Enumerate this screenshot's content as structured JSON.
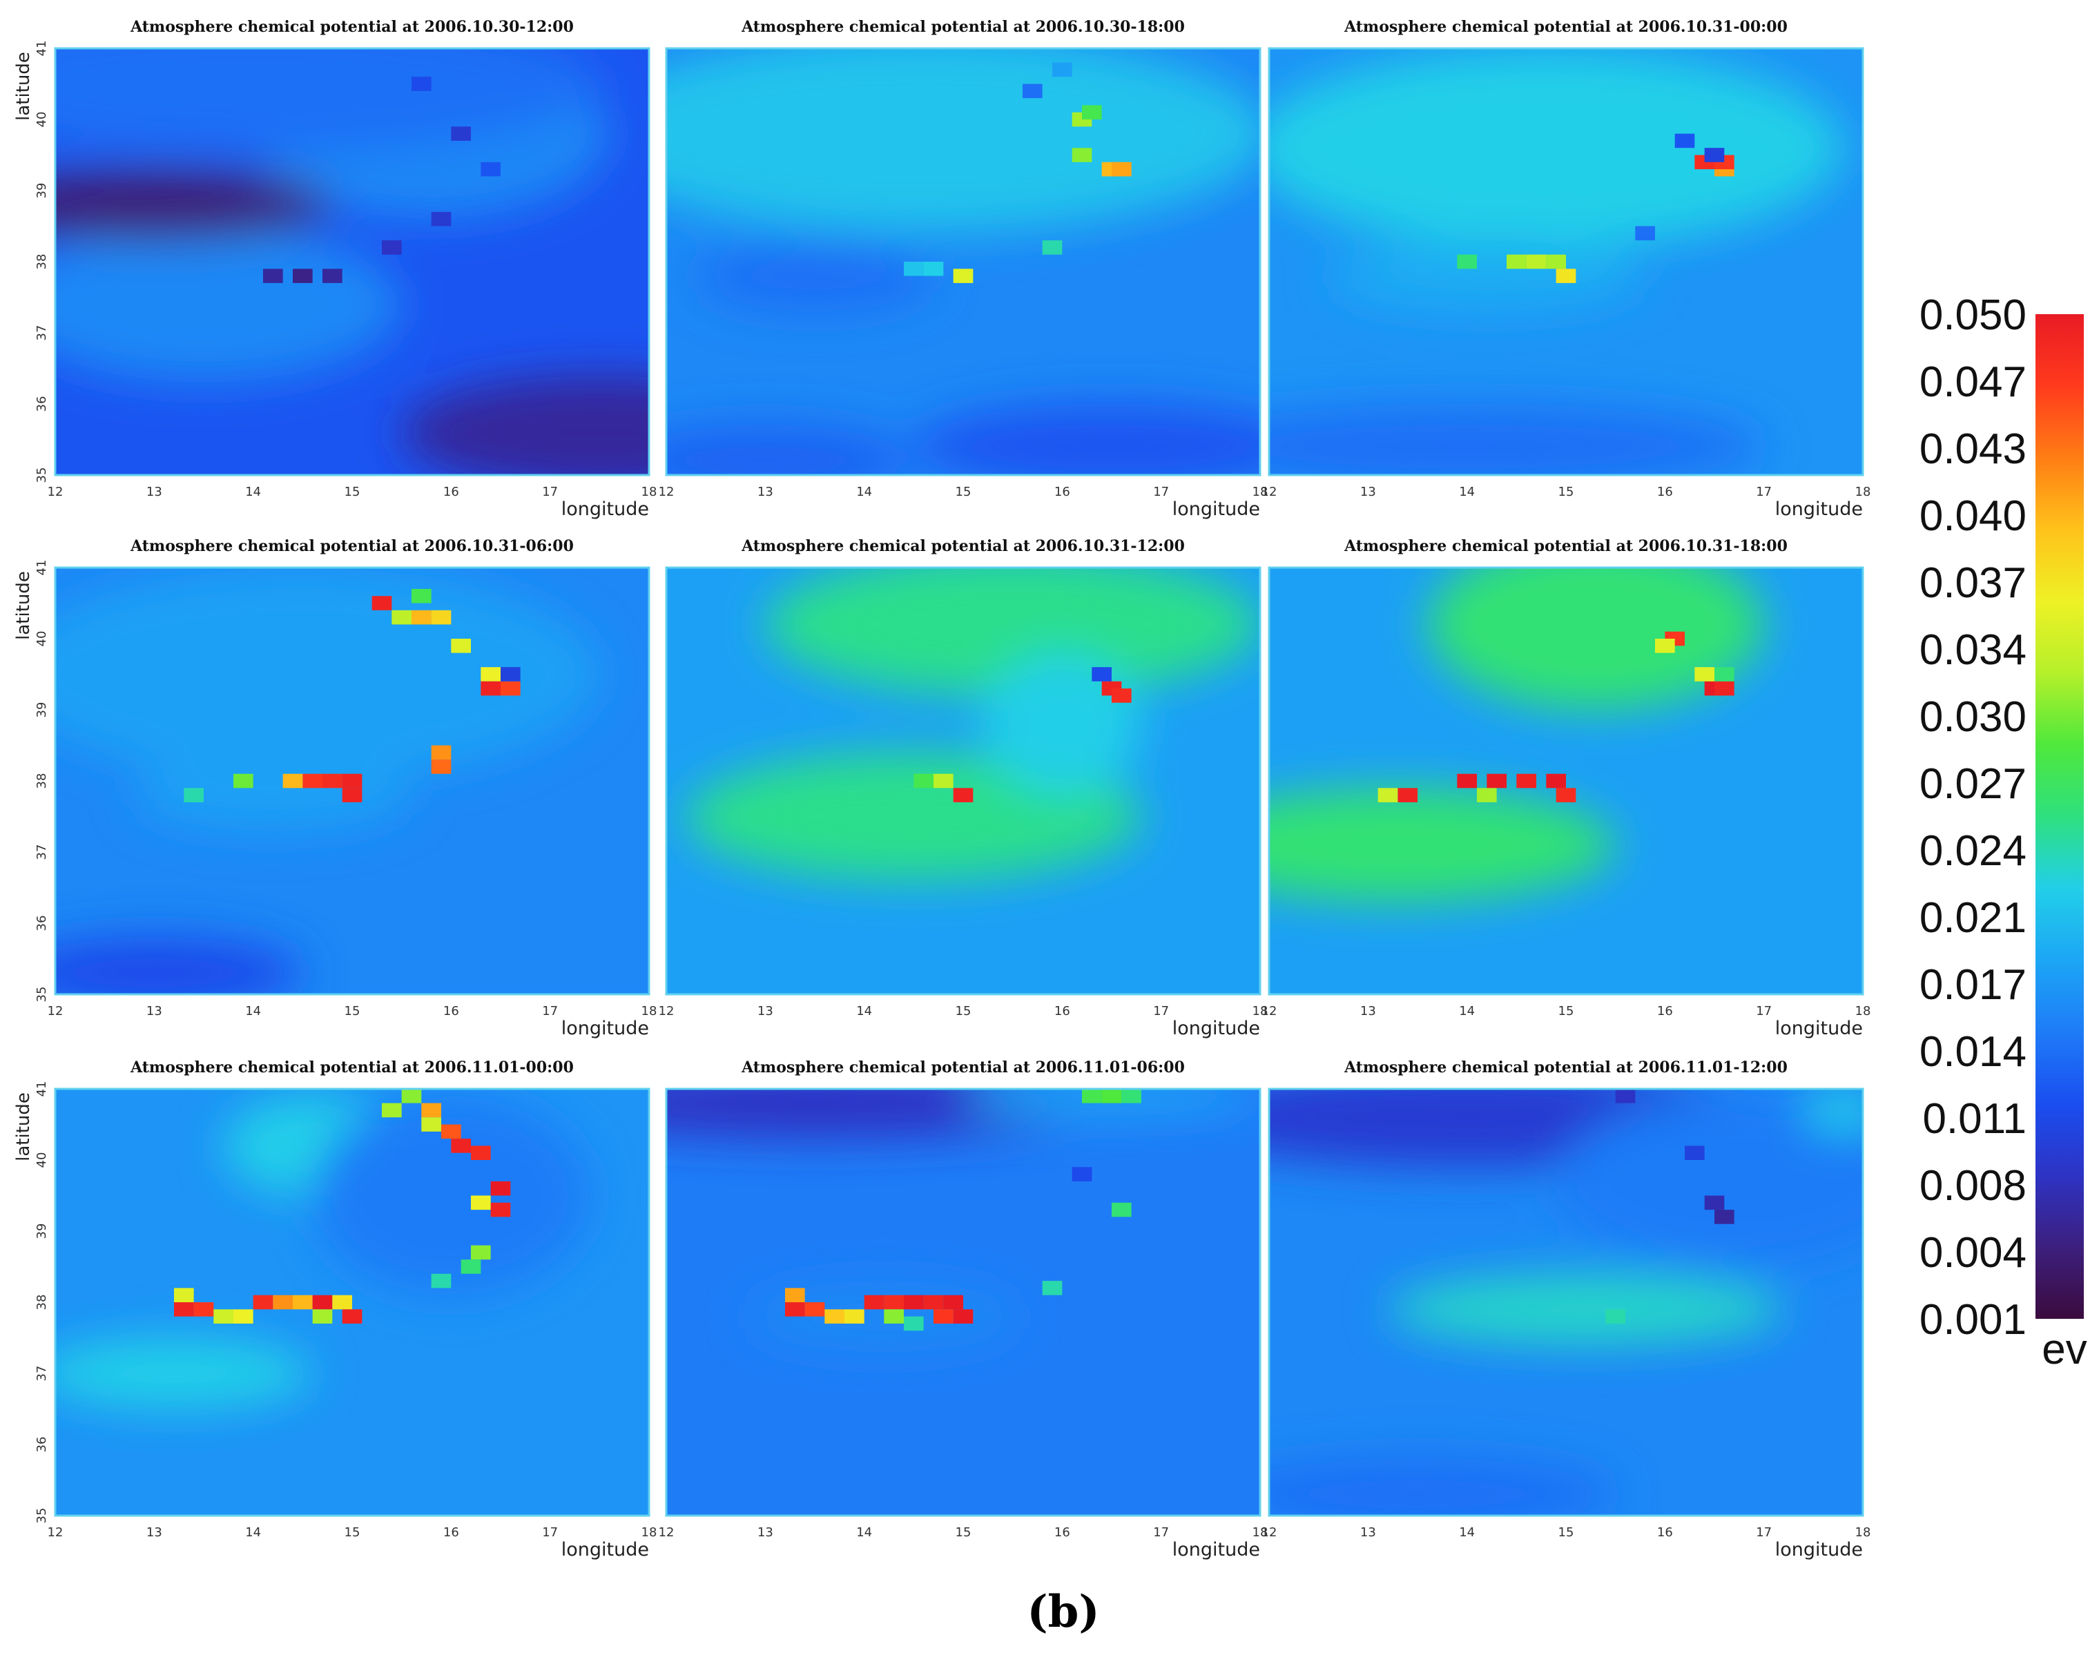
{
  "figure_label": "(b)",
  "chart_data": {
    "type": "heatmap",
    "layout": "3x3 small multiples",
    "title_prefix": "Atmosphere chemical potential at",
    "xlabel": "longitude",
    "ylabel": "latitude",
    "xlim": [
      12,
      18
    ],
    "ylim": [
      35,
      41
    ],
    "x_ticks": [
      "12",
      "13",
      "14",
      "15",
      "16",
      "17",
      "18"
    ],
    "y_ticks": [
      "35",
      "36",
      "37",
      "38",
      "39",
      "40",
      "41"
    ],
    "colorbar": {
      "unit": "ev",
      "range": [
        0.001,
        0.05
      ],
      "ticks": [
        "0.050",
        "0.047",
        "0.043",
        "0.040",
        "0.037",
        "0.034",
        "0.030",
        "0.027",
        "0.024",
        "0.021",
        "0.017",
        "0.014",
        "0.011",
        "0.008",
        "0.004",
        "0.001"
      ],
      "colors": [
        "#3a0b3e",
        "#3d1f7d",
        "#2d33c4",
        "#1a4ef0",
        "#1e7cf7",
        "#1ca6f5",
        "#22cfe8",
        "#2ee07e",
        "#4fe83c",
        "#b5f02a",
        "#eef125",
        "#ffc21a",
        "#ff7d14",
        "#ff3a1d",
        "#e81b24"
      ]
    },
    "panels": [
      {
        "time": "2006.10.30-12:00",
        "background": [
          {
            "x": 15,
            "y": 38.6,
            "rx": 6,
            "ry": 2.6,
            "v": 0.012
          },
          {
            "x": 13.5,
            "y": 37.4,
            "rx": 2.0,
            "ry": 1.1,
            "v": 0.016
          },
          {
            "x": 15.8,
            "y": 39.8,
            "rx": 1.8,
            "ry": 1.2,
            "v": 0.016
          },
          {
            "x": 14.0,
            "y": 40.5,
            "rx": 3.5,
            "ry": 1.0,
            "v": 0.014
          },
          {
            "x": 13.0,
            "y": 38.8,
            "rx": 1.8,
            "ry": 0.5,
            "v": 0.004
          },
          {
            "x": 17.5,
            "y": 35.6,
            "rx": 2.0,
            "ry": 0.8,
            "v": 0.006
          }
        ],
        "cells": [
          {
            "x": 14.2,
            "y": 37.8,
            "v": 0.006
          },
          {
            "x": 14.5,
            "y": 37.8,
            "v": 0.005
          },
          {
            "x": 14.8,
            "y": 37.8,
            "v": 0.006
          },
          {
            "x": 15.4,
            "y": 38.2,
            "v": 0.008
          },
          {
            "x": 15.9,
            "y": 38.6,
            "v": 0.009
          },
          {
            "x": 16.1,
            "y": 39.8,
            "v": 0.009
          },
          {
            "x": 15.7,
            "y": 40.5,
            "v": 0.011
          },
          {
            "x": 16.4,
            "y": 39.3,
            "v": 0.012
          }
        ]
      },
      {
        "time": "2006.10.30-18:00",
        "background": [
          {
            "x": 15,
            "y": 38.5,
            "rx": 6,
            "ry": 3,
            "v": 0.016
          },
          {
            "x": 14.6,
            "y": 39.8,
            "rx": 3.5,
            "ry": 1.4,
            "v": 0.021
          },
          {
            "x": 16.5,
            "y": 35.4,
            "rx": 2.0,
            "ry": 0.6,
            "v": 0.012
          },
          {
            "x": 13.0,
            "y": 35.2,
            "rx": 1.5,
            "ry": 0.5,
            "v": 0.013
          },
          {
            "x": 13.5,
            "y": 37.8,
            "rx": 1.2,
            "ry": 0.5,
            "v": 0.014
          }
        ],
        "cells": [
          {
            "x": 16.5,
            "y": 39.3,
            "v": 0.04
          },
          {
            "x": 16.6,
            "y": 39.3,
            "v": 0.041
          },
          {
            "x": 16.2,
            "y": 39.5,
            "v": 0.031
          },
          {
            "x": 16.2,
            "y": 40.0,
            "v": 0.032
          },
          {
            "x": 16.3,
            "y": 40.1,
            "v": 0.028
          },
          {
            "x": 15.0,
            "y": 37.8,
            "v": 0.035
          },
          {
            "x": 14.5,
            "y": 37.9,
            "v": 0.021
          },
          {
            "x": 14.7,
            "y": 37.9,
            "v": 0.022
          },
          {
            "x": 15.9,
            "y": 38.2,
            "v": 0.024
          },
          {
            "x": 15.7,
            "y": 40.4,
            "v": 0.014
          },
          {
            "x": 16.0,
            "y": 40.7,
            "v": 0.018
          }
        ]
      },
      {
        "time": "2006.10.31-00:00",
        "background": [
          {
            "x": 15,
            "y": 38.5,
            "rx": 6,
            "ry": 3,
            "v": 0.017
          },
          {
            "x": 14.8,
            "y": 39.6,
            "rx": 3.0,
            "ry": 1.4,
            "v": 0.022
          },
          {
            "x": 14.2,
            "y": 37.8,
            "rx": 1.6,
            "ry": 0.5,
            "v": 0.019
          },
          {
            "x": 14.0,
            "y": 35.4,
            "rx": 3.0,
            "ry": 0.6,
            "v": 0.014
          }
        ],
        "cells": [
          {
            "x": 16.4,
            "y": 39.4,
            "v": 0.048
          },
          {
            "x": 16.6,
            "y": 39.3,
            "v": 0.041
          },
          {
            "x": 16.6,
            "y": 39.4,
            "v": 0.047
          },
          {
            "x": 14.5,
            "y": 38.0,
            "v": 0.032
          },
          {
            "x": 14.7,
            "y": 38.0,
            "v": 0.033
          },
          {
            "x": 14.9,
            "y": 38.0,
            "v": 0.032
          },
          {
            "x": 15.0,
            "y": 37.8,
            "v": 0.037
          },
          {
            "x": 14.0,
            "y": 38.0,
            "v": 0.026
          },
          {
            "x": 15.8,
            "y": 38.4,
            "v": 0.014
          },
          {
            "x": 16.2,
            "y": 39.7,
            "v": 0.012
          },
          {
            "x": 16.5,
            "y": 39.5,
            "v": 0.01
          }
        ]
      },
      {
        "time": "2006.10.31-06:00",
        "background": [
          {
            "x": 15,
            "y": 38.5,
            "rx": 6,
            "ry": 3,
            "v": 0.016
          },
          {
            "x": 14.5,
            "y": 39.5,
            "rx": 3.0,
            "ry": 1.5,
            "v": 0.018
          },
          {
            "x": 13.0,
            "y": 35.3,
            "rx": 1.5,
            "ry": 0.5,
            "v": 0.011
          },
          {
            "x": 14.2,
            "y": 37.8,
            "rx": 1.4,
            "ry": 0.5,
            "v": 0.018
          }
        ],
        "cells": [
          {
            "x": 15.3,
            "y": 40.5,
            "v": 0.049
          },
          {
            "x": 15.5,
            "y": 40.3,
            "v": 0.033
          },
          {
            "x": 15.7,
            "y": 40.3,
            "v": 0.04
          },
          {
            "x": 15.9,
            "y": 40.3,
            "v": 0.038
          },
          {
            "x": 16.1,
            "y": 39.9,
            "v": 0.035
          },
          {
            "x": 15.7,
            "y": 40.6,
            "v": 0.028
          },
          {
            "x": 16.4,
            "y": 39.5,
            "v": 0.036
          },
          {
            "x": 16.4,
            "y": 39.3,
            "v": 0.049
          },
          {
            "x": 16.6,
            "y": 39.3,
            "v": 0.046
          },
          {
            "x": 15.9,
            "y": 38.4,
            "v": 0.042
          },
          {
            "x": 15.9,
            "y": 38.2,
            "v": 0.044
          },
          {
            "x": 14.6,
            "y": 38.0,
            "v": 0.047
          },
          {
            "x": 14.8,
            "y": 38.0,
            "v": 0.048
          },
          {
            "x": 15.0,
            "y": 38.0,
            "v": 0.049
          },
          {
            "x": 15.0,
            "y": 37.8,
            "v": 0.049
          },
          {
            "x": 14.4,
            "y": 38.0,
            "v": 0.04
          },
          {
            "x": 13.9,
            "y": 38.0,
            "v": 0.03
          },
          {
            "x": 13.4,
            "y": 37.8,
            "v": 0.024
          },
          {
            "x": 16.6,
            "y": 39.5,
            "v": 0.01
          }
        ]
      },
      {
        "time": "2006.10.31-12:00",
        "background": [
          {
            "x": 15,
            "y": 38.5,
            "rx": 6,
            "ry": 3,
            "v": 0.018
          },
          {
            "x": 14.0,
            "y": 37.3,
            "rx": 1.7,
            "ry": 0.55,
            "v": 0.031
          },
          {
            "x": 14.5,
            "y": 37.5,
            "rx": 2.3,
            "ry": 0.9,
            "v": 0.025
          },
          {
            "x": 15.5,
            "y": 40.4,
            "rx": 1.6,
            "ry": 0.6,
            "v": 0.031
          },
          {
            "x": 15.5,
            "y": 40.2,
            "rx": 2.5,
            "ry": 1.0,
            "v": 0.025
          },
          {
            "x": 16.0,
            "y": 38.8,
            "rx": 0.8,
            "ry": 1.0,
            "v": 0.022
          }
        ],
        "cells": [
          {
            "x": 16.5,
            "y": 39.3,
            "v": 0.049
          },
          {
            "x": 16.6,
            "y": 39.2,
            "v": 0.048
          },
          {
            "x": 16.4,
            "y": 39.5,
            "v": 0.011
          },
          {
            "x": 15.0,
            "y": 37.8,
            "v": 0.049
          },
          {
            "x": 14.8,
            "y": 38.0,
            "v": 0.033
          },
          {
            "x": 14.6,
            "y": 38.0,
            "v": 0.028
          }
        ]
      },
      {
        "time": "2006.10.31-18:00",
        "background": [
          {
            "x": 15,
            "y": 38.5,
            "rx": 6,
            "ry": 3,
            "v": 0.018
          },
          {
            "x": 13.5,
            "y": 37.0,
            "rx": 1.5,
            "ry": 0.45,
            "v": 0.031
          },
          {
            "x": 13.3,
            "y": 37.1,
            "rx": 2.2,
            "ry": 0.8,
            "v": 0.026
          },
          {
            "x": 15.3,
            "y": 40.2,
            "rx": 1.1,
            "ry": 0.8,
            "v": 0.032
          },
          {
            "x": 15.3,
            "y": 40.2,
            "rx": 1.7,
            "ry": 1.2,
            "v": 0.026
          }
        ],
        "cells": [
          {
            "x": 14.0,
            "y": 38.0,
            "v": 0.05
          },
          {
            "x": 14.3,
            "y": 38.0,
            "v": 0.05
          },
          {
            "x": 14.6,
            "y": 38.0,
            "v": 0.049
          },
          {
            "x": 14.9,
            "y": 38.0,
            "v": 0.05
          },
          {
            "x": 15.0,
            "y": 37.8,
            "v": 0.048
          },
          {
            "x": 13.4,
            "y": 37.8,
            "v": 0.049
          },
          {
            "x": 13.2,
            "y": 37.8,
            "v": 0.034
          },
          {
            "x": 14.2,
            "y": 37.8,
            "v": 0.032
          },
          {
            "x": 16.1,
            "y": 40.0,
            "v": 0.047
          },
          {
            "x": 16.0,
            "y": 39.9,
            "v": 0.035
          },
          {
            "x": 16.5,
            "y": 39.3,
            "v": 0.05
          },
          {
            "x": 16.6,
            "y": 39.3,
            "v": 0.049
          },
          {
            "x": 16.4,
            "y": 39.5,
            "v": 0.035
          },
          {
            "x": 16.6,
            "y": 39.5,
            "v": 0.026
          }
        ]
      },
      {
        "time": "2006.11.01-00:00",
        "background": [
          {
            "x": 15,
            "y": 38.5,
            "rx": 6,
            "ry": 3,
            "v": 0.017
          },
          {
            "x": 13.2,
            "y": 37.0,
            "rx": 1.4,
            "ry": 0.5,
            "v": 0.022
          },
          {
            "x": 14.6,
            "y": 40.2,
            "rx": 0.9,
            "ry": 0.7,
            "v": 0.022
          },
          {
            "x": 16.0,
            "y": 39.5,
            "rx": 1.4,
            "ry": 1.4,
            "v": 0.015
          }
        ],
        "cells": [
          {
            "x": 13.3,
            "y": 38.1,
            "v": 0.035
          },
          {
            "x": 13.3,
            "y": 37.9,
            "v": 0.049
          },
          {
            "x": 13.5,
            "y": 37.9,
            "v": 0.047
          },
          {
            "x": 13.7,
            "y": 37.8,
            "v": 0.034
          },
          {
            "x": 13.9,
            "y": 37.8,
            "v": 0.036
          },
          {
            "x": 14.1,
            "y": 38.0,
            "v": 0.048
          },
          {
            "x": 14.3,
            "y": 38.0,
            "v": 0.042
          },
          {
            "x": 14.5,
            "y": 38.0,
            "v": 0.04
          },
          {
            "x": 14.7,
            "y": 38.0,
            "v": 0.05
          },
          {
            "x": 14.9,
            "y": 38.0,
            "v": 0.037
          },
          {
            "x": 15.0,
            "y": 37.8,
            "v": 0.049
          },
          {
            "x": 14.7,
            "y": 37.8,
            "v": 0.032
          },
          {
            "x": 15.6,
            "y": 40.9,
            "v": 0.031
          },
          {
            "x": 15.8,
            "y": 40.7,
            "v": 0.041
          },
          {
            "x": 15.8,
            "y": 40.5,
            "v": 0.034
          },
          {
            "x": 16.0,
            "y": 40.4,
            "v": 0.045
          },
          {
            "x": 16.1,
            "y": 40.2,
            "v": 0.049
          },
          {
            "x": 16.3,
            "y": 40.1,
            "v": 0.048
          },
          {
            "x": 15.4,
            "y": 40.7,
            "v": 0.032
          },
          {
            "x": 16.5,
            "y": 39.6,
            "v": 0.05
          },
          {
            "x": 16.5,
            "y": 39.3,
            "v": 0.049
          },
          {
            "x": 16.3,
            "y": 39.4,
            "v": 0.036
          },
          {
            "x": 16.3,
            "y": 38.7,
            "v": 0.031
          },
          {
            "x": 16.2,
            "y": 38.5,
            "v": 0.026
          },
          {
            "x": 15.9,
            "y": 38.3,
            "v": 0.024
          }
        ]
      },
      {
        "time": "2006.11.01-06:00",
        "background": [
          {
            "x": 15,
            "y": 38.5,
            "rx": 6,
            "ry": 3,
            "v": 0.015
          },
          {
            "x": 13.5,
            "y": 40.8,
            "rx": 2.8,
            "ry": 0.5,
            "v": 0.008
          },
          {
            "x": 16.5,
            "y": 40.9,
            "rx": 1.5,
            "ry": 0.3,
            "v": 0.018
          },
          {
            "x": 14.2,
            "y": 37.8,
            "rx": 1.4,
            "ry": 0.5,
            "v": 0.016
          }
        ],
        "cells": [
          {
            "x": 13.3,
            "y": 38.1,
            "v": 0.041
          },
          {
            "x": 13.3,
            "y": 37.9,
            "v": 0.049
          },
          {
            "x": 13.5,
            "y": 37.9,
            "v": 0.046
          },
          {
            "x": 13.7,
            "y": 37.8,
            "v": 0.039
          },
          {
            "x": 13.9,
            "y": 37.8,
            "v": 0.037
          },
          {
            "x": 14.1,
            "y": 38.0,
            "v": 0.049
          },
          {
            "x": 14.3,
            "y": 38.0,
            "v": 0.048
          },
          {
            "x": 14.5,
            "y": 38.0,
            "v": 0.05
          },
          {
            "x": 14.7,
            "y": 38.0,
            "v": 0.049
          },
          {
            "x": 14.9,
            "y": 38.0,
            "v": 0.05
          },
          {
            "x": 15.0,
            "y": 37.8,
            "v": 0.05
          },
          {
            "x": 14.8,
            "y": 37.8,
            "v": 0.047
          },
          {
            "x": 14.3,
            "y": 37.8,
            "v": 0.031
          },
          {
            "x": 14.5,
            "y": 37.7,
            "v": 0.024
          },
          {
            "x": 16.3,
            "y": 40.9,
            "v": 0.028
          },
          {
            "x": 16.5,
            "y": 40.9,
            "v": 0.029
          },
          {
            "x": 16.7,
            "y": 40.9,
            "v": 0.026
          },
          {
            "x": 16.6,
            "y": 39.3,
            "v": 0.026
          },
          {
            "x": 15.9,
            "y": 38.2,
            "v": 0.024
          },
          {
            "x": 16.2,
            "y": 39.8,
            "v": 0.011
          }
        ]
      },
      {
        "time": "2006.11.01-12:00",
        "background": [
          {
            "x": 15,
            "y": 38.5,
            "rx": 6,
            "ry": 3,
            "v": 0.016
          },
          {
            "x": 14.0,
            "y": 40.6,
            "rx": 3.0,
            "ry": 0.7,
            "v": 0.009
          },
          {
            "x": 15.2,
            "y": 37.9,
            "rx": 2.0,
            "ry": 0.5,
            "v": 0.023
          },
          {
            "x": 16.7,
            "y": 39.7,
            "rx": 1.8,
            "ry": 1.2,
            "v": 0.015
          },
          {
            "x": 17.8,
            "y": 40.7,
            "rx": 0.4,
            "ry": 0.3,
            "v": 0.022
          },
          {
            "x": 13.5,
            "y": 35.3,
            "rx": 2.0,
            "ry": 0.5,
            "v": 0.014
          }
        ],
        "cells": [
          {
            "x": 16.5,
            "y": 39.4,
            "v": 0.007
          },
          {
            "x": 16.6,
            "y": 39.2,
            "v": 0.006
          },
          {
            "x": 16.3,
            "y": 40.1,
            "v": 0.01
          },
          {
            "x": 15.5,
            "y": 37.8,
            "v": 0.024
          },
          {
            "x": 15.6,
            "y": 40.9,
            "v": 0.008
          }
        ]
      }
    ]
  }
}
